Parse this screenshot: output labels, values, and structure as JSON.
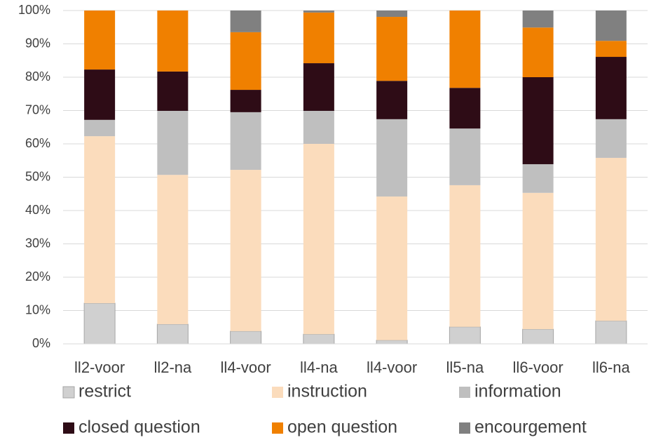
{
  "chart_data": {
    "type": "stacked_bar",
    "categories": [
      "ll2-voor",
      "ll2-na",
      "ll4-voor",
      "ll4-na",
      "ll4-voor",
      "ll5-na",
      "ll6-voor",
      "ll6-na"
    ],
    "series": [
      {
        "name": "restrict",
        "color": "#d0d0d0",
        "values": [
          12.2,
          5.9,
          3.8,
          2.9,
          1.1,
          5.1,
          4.4,
          6.9
        ]
      },
      {
        "name": "instruction",
        "color": "#fbdcbc",
        "values": [
          50.1,
          44.8,
          48.4,
          57.1,
          43.1,
          42.5,
          40.9,
          48.9
        ]
      },
      {
        "name": "information",
        "color": "#bfbfbf",
        "values": [
          4.9,
          19.2,
          17.3,
          9.9,
          23.2,
          17.0,
          8.6,
          11.6
        ]
      },
      {
        "name": "closed question",
        "color": "#2e0c16",
        "values": [
          15.1,
          11.8,
          6.7,
          14.3,
          11.5,
          12.2,
          26.1,
          18.7
        ]
      },
      {
        "name": "open question",
        "color": "#f08000",
        "values": [
          17.7,
          18.3,
          17.3,
          15.2,
          19.2,
          23.2,
          14.9,
          4.8
        ]
      },
      {
        "name": "encourgement",
        "color": "#808080",
        "values": [
          0,
          0,
          6.5,
          0.6,
          1.9,
          0,
          5.1,
          9.1
        ]
      }
    ],
    "ylim": [
      0,
      100
    ],
    "yticks": [
      {
        "value": 0,
        "label": "0%"
      },
      {
        "value": 10,
        "label": "10%"
      },
      {
        "value": 20,
        "label": "20%"
      },
      {
        "value": 30,
        "label": "30%"
      },
      {
        "value": 40,
        "label": "40%"
      },
      {
        "value": 50,
        "label": "50%"
      },
      {
        "value": 60,
        "label": "60%"
      },
      {
        "value": 70,
        "label": "70%"
      },
      {
        "value": 80,
        "label": "80%"
      },
      {
        "value": 90,
        "label": "90%"
      },
      {
        "value": 100,
        "label": "100%"
      }
    ],
    "grid": true
  }
}
